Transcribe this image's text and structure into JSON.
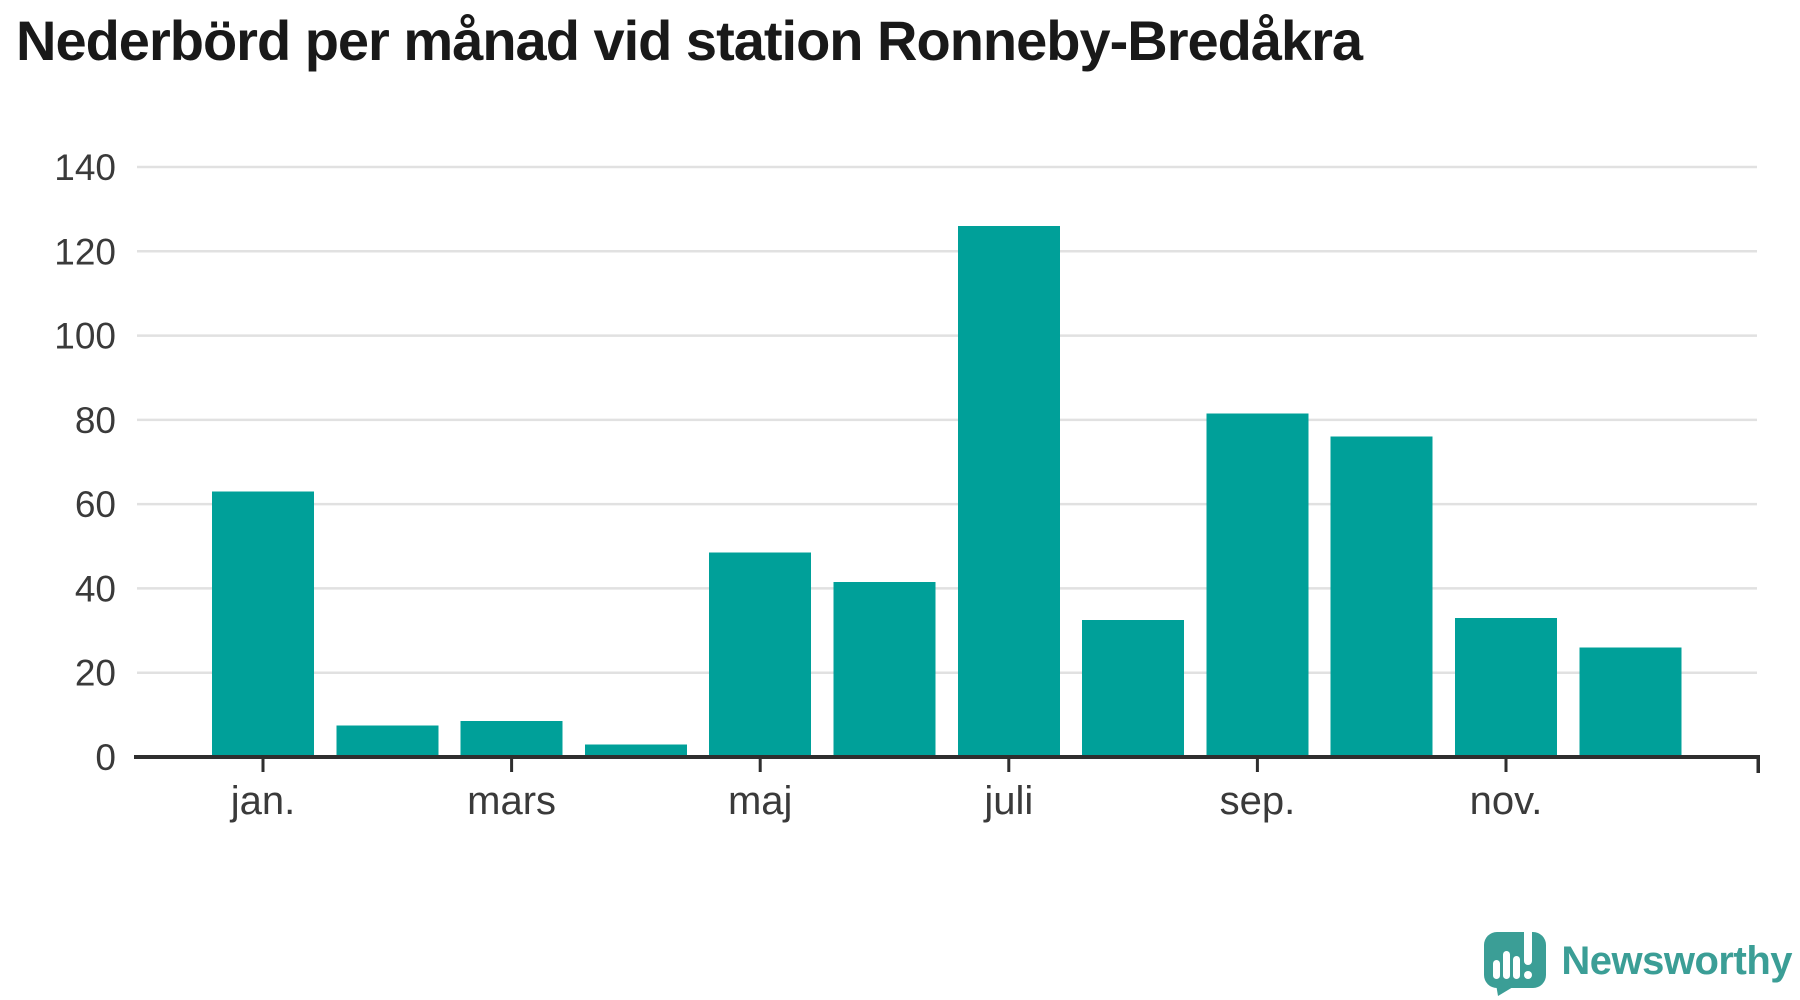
{
  "page": {
    "title": "Nederbörd per månad vid station Ronneby-Bredåkra"
  },
  "branding": {
    "name": "Newsworthy",
    "logo_icon": "bar-chart-speech-bubble-icon",
    "logo_color": "#3b9e96"
  },
  "chart_data": {
    "type": "bar",
    "title": "Nederbörd per månad vid station Ronneby-Bredåkra",
    "values": [
      63,
      7.5,
      8.5,
      3,
      48.5,
      41.5,
      126,
      32.5,
      81.5,
      76,
      33,
      26
    ],
    "x_tick_labels": [
      "jan.",
      "mars",
      "maj",
      "juli",
      "sep.",
      "nov."
    ],
    "x_tick_bar_indices": [
      0,
      2,
      4,
      6,
      8,
      10
    ],
    "y_ticks": [
      0,
      20,
      40,
      60,
      80,
      100,
      120,
      140
    ],
    "ylim": [
      0,
      140
    ],
    "xlabel": "",
    "ylabel": "",
    "grid": true,
    "legend_position": "none",
    "bar_color": "#00a099",
    "axis_color": "#2e2e2e",
    "grid_color": "#e1e1e1",
    "tick_label_color": "#3a3a3a"
  }
}
